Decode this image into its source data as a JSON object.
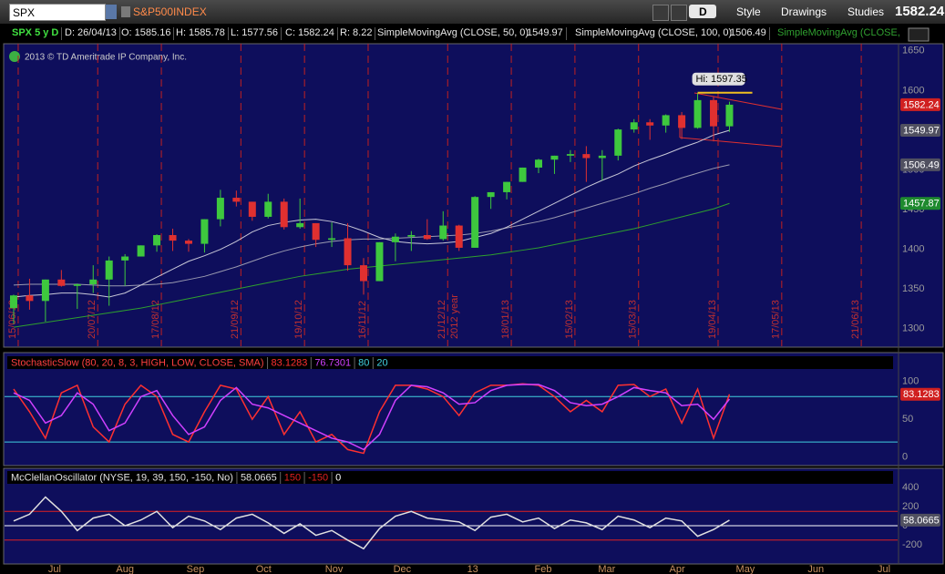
{
  "toolbar": {
    "symbol": "SPX",
    "description": "S&P500INDEX",
    "aggregation": "D",
    "buttons": [
      "Style",
      "Drawings",
      "Studies"
    ],
    "last": "1582.24"
  },
  "info_bar": {
    "symbol": "SPX 5 y D",
    "items": [
      "D: 26/04/13",
      "O: 1585.16",
      "H: 1585.78",
      "L: 1577.56",
      "C: 1582.24",
      "R: 8.22"
    ]
  },
  "copyright": "2013 © TD Ameritrade IP Company, Inc.",
  "chart_data": [
    {
      "type": "candlestick",
      "x": [
        "2012-06-13",
        "2012-06-20",
        "2012-06-27",
        "2012-07-04",
        "2012-07-11",
        "2012-07-18",
        "2012-07-25",
        "2012-08-01",
        "2012-08-08",
        "2012-08-15",
        "2012-08-22",
        "2012-08-29",
        "2012-09-05",
        "2012-09-12",
        "2012-09-19",
        "2012-09-26",
        "2012-10-03",
        "2012-10-10",
        "2012-10-17",
        "2012-10-24",
        "2012-10-31",
        "2012-11-07",
        "2012-11-14",
        "2012-11-21",
        "2012-11-28",
        "2012-12-05",
        "2012-12-12",
        "2012-12-19",
        "2012-12-26",
        "2013-01-02",
        "2013-01-09",
        "2013-01-16",
        "2013-01-23",
        "2013-01-30",
        "2013-02-06",
        "2013-02-13",
        "2013-02-20",
        "2013-02-27",
        "2013-03-06",
        "2013-03-13",
        "2013-03-20",
        "2013-03-27",
        "2013-04-03",
        "2013-04-10",
        "2013-04-17",
        "2013-04-24"
      ],
      "open": [
        1326,
        1342,
        1335,
        1362,
        1354,
        1356,
        1362,
        1386,
        1391,
        1405,
        1418,
        1411,
        1407,
        1438,
        1465,
        1460,
        1441,
        1460,
        1428,
        1433,
        1412,
        1414,
        1380,
        1360,
        1409,
        1416,
        1418,
        1413,
        1430,
        1402,
        1466,
        1472,
        1485,
        1503,
        1513,
        1518,
        1520,
        1515,
        1518,
        1551,
        1560,
        1556,
        1569,
        1553,
        1588,
        1555
      ],
      "high": [
        1343,
        1363,
        1362,
        1374,
        1357,
        1380,
        1391,
        1394,
        1405,
        1419,
        1426,
        1413,
        1438,
        1475,
        1474,
        1460,
        1470,
        1464,
        1464,
        1433,
        1434,
        1433,
        1389,
        1409,
        1420,
        1423,
        1438,
        1448,
        1431,
        1467,
        1472,
        1485,
        1503,
        1514,
        1518,
        1525,
        1530,
        1525,
        1552,
        1564,
        1564,
        1570,
        1573,
        1597,
        1593,
        1586
      ],
      "low": [
        1306,
        1324,
        1309,
        1353,
        1325,
        1345,
        1329,
        1354,
        1391,
        1397,
        1398,
        1397,
        1396,
        1429,
        1454,
        1436,
        1439,
        1425,
        1426,
        1403,
        1403,
        1373,
        1343,
        1360,
        1385,
        1398,
        1412,
        1411,
        1398,
        1402,
        1451,
        1463,
        1485,
        1496,
        1495,
        1510,
        1485,
        1487,
        1512,
        1547,
        1538,
        1547,
        1539,
        1552,
        1536,
        1548
      ],
      "close": [
        1342,
        1335,
        1362,
        1354,
        1356,
        1362,
        1386,
        1391,
        1405,
        1418,
        1411,
        1407,
        1438,
        1465,
        1460,
        1441,
        1460,
        1428,
        1433,
        1412,
        1414,
        1380,
        1360,
        1409,
        1416,
        1418,
        1413,
        1430,
        1402,
        1466,
        1472,
        1485,
        1503,
        1513,
        1518,
        1520,
        1515,
        1518,
        1551,
        1560,
        1556,
        1569,
        1553,
        1588,
        1555,
        1582.24
      ],
      "up_color": "#3ec83e",
      "down_color": "#e03030",
      "series": [
        {
          "name": "SimpleMovingAvg (CLOSE, 50, 0)",
          "color": "#c8c8d8",
          "values": [
            1340,
            1342,
            1343,
            1345,
            1345,
            1343,
            1340,
            1345,
            1355,
            1365,
            1375,
            1385,
            1392,
            1400,
            1410,
            1422,
            1430,
            1434,
            1437,
            1438,
            1435,
            1430,
            1423,
            1415,
            1410,
            1408,
            1407,
            1408,
            1410,
            1415,
            1420,
            1428,
            1438,
            1448,
            1458,
            1468,
            1478,
            1487,
            1495,
            1505,
            1513,
            1520,
            1528,
            1535,
            1544,
            1549.97
          ]
        },
        {
          "name": "SimpleMovingAvg (CLOSE, 100, 0)",
          "color": "#9a9ab0",
          "values": [
            1355,
            1356,
            1356,
            1356,
            1356,
            1355,
            1354,
            1354,
            1355,
            1356,
            1358,
            1362,
            1366,
            1372,
            1378,
            1385,
            1392,
            1398,
            1403,
            1407,
            1410,
            1412,
            1413,
            1413,
            1414,
            1415,
            1416,
            1417,
            1418,
            1420,
            1423,
            1427,
            1431,
            1435,
            1440,
            1446,
            1452,
            1458,
            1464,
            1470,
            1477,
            1483,
            1490,
            1496,
            1502,
            1506.49
          ]
        },
        {
          "name": "SimpleMovingAvg (CLOSE,",
          "color": "#2ea02e",
          "values": [
            1302,
            1305,
            1308,
            1311,
            1314,
            1317,
            1320,
            1323,
            1326,
            1330,
            1334,
            1338,
            1342,
            1346,
            1350,
            1354,
            1358,
            1362,
            1366,
            1369,
            1372,
            1375,
            1377,
            1379,
            1381,
            1383,
            1385,
            1387,
            1389,
            1391,
            1393,
            1396,
            1399,
            1402,
            1406,
            1410,
            1414,
            1418,
            1422,
            1426,
            1431,
            1436,
            1441,
            1446,
            1451,
            1457.87
          ]
        }
      ],
      "xlim": [
        "2012-06-09",
        "2013-07-07"
      ],
      "ylim": [
        1278,
        1659
      ],
      "yticks": [
        1300,
        1350,
        1400,
        1450,
        1500,
        1550,
        1600,
        1650
      ],
      "expiration_lines": [
        "15/06/12",
        "20/07/12",
        "17/08/12",
        "21/09/12",
        "19/10/12",
        "16/11/12",
        "21/12/12",
        "18/01/13",
        "15/02/13",
        "15/03/13",
        "19/04/13",
        "17/05/13",
        "21/06/13"
      ],
      "year_marker": "2012 year",
      "annotation": {
        "text": "Hi: 1597.35",
        "value": 1597.35,
        "x": "2013-04-10"
      }
    },
    {
      "type": "line",
      "title": "StochasticSlow (80, 20, 8, 3, HIGH, LOW, CLOSE, SMA)",
      "series": [
        {
          "color": "#ff3030",
          "values": [
            90,
            60,
            25,
            85,
            95,
            40,
            20,
            70,
            95,
            80,
            30,
            20,
            60,
            95,
            90,
            50,
            80,
            30,
            60,
            20,
            30,
            10,
            5,
            60,
            95,
            95,
            90,
            80,
            55,
            85,
            95,
            95,
            97,
            95,
            80,
            60,
            75,
            60,
            95,
            96,
            80,
            90,
            45,
            90,
            25,
            83.1283
          ]
        },
        {
          "color": "#d040ff",
          "values": [
            85,
            75,
            45,
            55,
            85,
            70,
            35,
            45,
            80,
            88,
            55,
            30,
            40,
            75,
            92,
            70,
            65,
            55,
            45,
            35,
            25,
            20,
            10,
            30,
            75,
            95,
            93,
            85,
            70,
            72,
            88,
            95,
            96,
            96,
            88,
            72,
            68,
            70,
            80,
            92,
            88,
            85,
            68,
            70,
            50,
            76.7301
          ]
        }
      ],
      "levels": [
        80,
        20
      ],
      "level_color": "#40d0e0",
      "ylim": [
        -10,
        137
      ],
      "yticks": [
        0,
        50,
        100
      ]
    },
    {
      "type": "line",
      "title": "McClellanOscillator (NYSE, 19, 39, 150, -150, No)",
      "series": [
        {
          "color": "#e0e0e0",
          "values": [
            50,
            120,
            300,
            150,
            -50,
            80,
            120,
            0,
            60,
            150,
            -20,
            100,
            50,
            -40,
            80,
            120,
            30,
            -80,
            20,
            -100,
            -50,
            -150,
            -240,
            -30,
            100,
            150,
            80,
            60,
            40,
            -50,
            90,
            120,
            40,
            80,
            -30,
            60,
            30,
            -40,
            100,
            60,
            -20,
            80,
            50,
            -110,
            -40,
            58.0665
          ]
        }
      ],
      "levels": [
        150,
        -150,
        0
      ],
      "level_colors": [
        "#e02020",
        "#e02020",
        "#ffffff"
      ],
      "ylim": [
        -390,
        600
      ],
      "yticks": [
        400,
        200,
        0,
        -200
      ],
      "xticks": [
        {
          "value": "2012-07-01",
          "label": "Jul"
        },
        {
          "value": "2012-08-01",
          "label": "Aug"
        },
        {
          "value": "2012-09-01",
          "label": "Sep"
        },
        {
          "value": "2012-10-01",
          "label": "Oct"
        },
        {
          "value": "2012-11-01",
          "label": "Nov"
        },
        {
          "value": "2012-12-01",
          "label": "Dec"
        },
        {
          "value": "2013-01-01",
          "label": "13"
        },
        {
          "value": "2013-02-01",
          "label": "Feb"
        },
        {
          "value": "2013-03-01",
          "label": "Mar"
        },
        {
          "value": "2013-04-01",
          "label": "Apr"
        },
        {
          "value": "2013-05-01",
          "label": "May"
        },
        {
          "value": "2013-06-01",
          "label": "Jun"
        },
        {
          "value": "2013-07-01",
          "label": "Jul"
        }
      ]
    }
  ]
}
